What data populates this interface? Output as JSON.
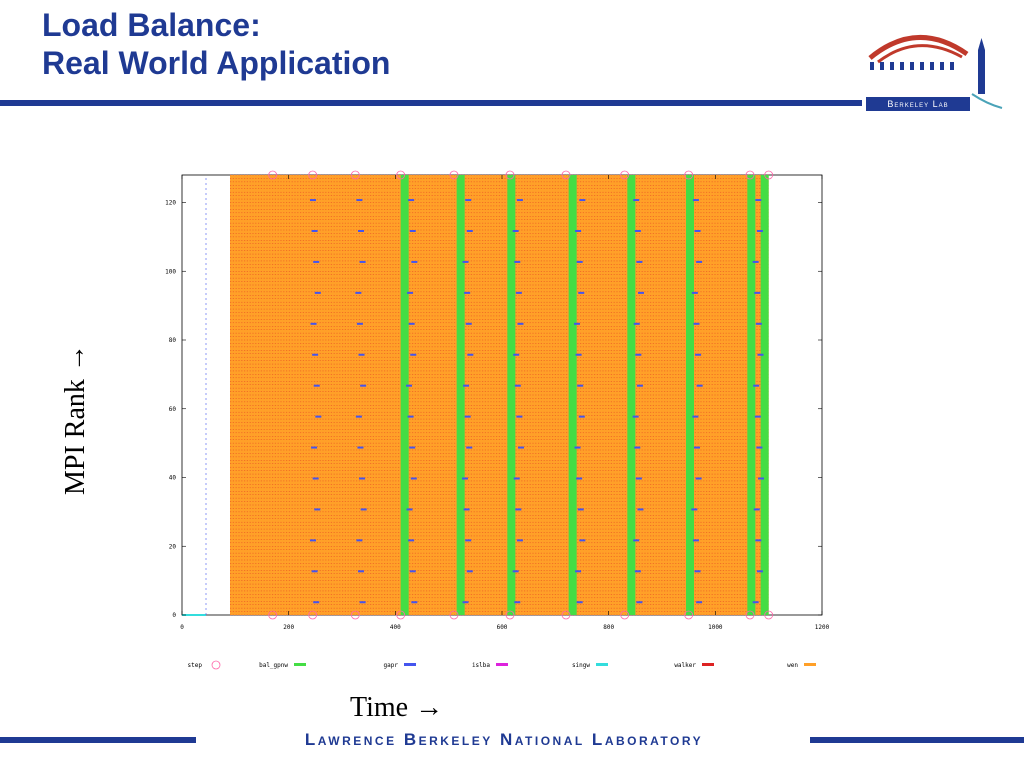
{
  "slide": {
    "title_line1": "Load Balance:",
    "title_line2": "Real World Application",
    "footer": "Lawrence Berkeley National Laboratory",
    "logo_text": "Berkeley Lab"
  },
  "colors": {
    "brand": "#1f3a93",
    "step": "#ff66aa",
    "bal_gpnw": "#44dd44",
    "gapr": "#4455ee",
    "islba": "#dd22dd",
    "singw": "#33dddd",
    "walker": "#dd2222",
    "wen": "#ffa028"
  },
  "chart_data": {
    "type": "scatter",
    "title": "",
    "xlabel": "Time →",
    "ylabel": "MPI Rank →",
    "xlim": [
      0,
      1200
    ],
    "ylim": [
      0,
      128
    ],
    "xticks": [
      0,
      200,
      400,
      600,
      800,
      1000,
      1200
    ],
    "yticks": [
      0,
      20,
      40,
      60,
      80,
      100,
      120
    ],
    "grid": false,
    "legend_position": "bottom",
    "series": [
      {
        "name": "step",
        "marker": "circle",
        "x": [
          170,
          245,
          325,
          410,
          510,
          615,
          720,
          830,
          950,
          1065,
          1100
        ],
        "y": [
          0,
          0,
          0,
          0,
          0,
          0,
          0,
          0,
          0,
          0,
          0
        ]
      },
      {
        "name": "bal_gpnw",
        "segments": [
          [
            410,
            425
          ],
          [
            515,
            530
          ],
          [
            610,
            625
          ],
          [
            725,
            740
          ],
          [
            835,
            850
          ],
          [
            945,
            960
          ],
          [
            1060,
            1075
          ],
          [
            1085,
            1100
          ]
        ],
        "y_range": [
          0,
          128
        ]
      },
      {
        "name": "gapr",
        "x_near": [
          245,
          330,
          425,
          530,
          625,
          740,
          850,
          960,
          1075
        ],
        "y_range": [
          0,
          128
        ]
      },
      {
        "name": "islba",
        "x_near": [],
        "y_range": [
          0,
          128
        ]
      },
      {
        "name": "singw",
        "x_range": [
          0,
          45
        ],
        "y": [
          0
        ]
      },
      {
        "name": "walker",
        "x_range": [
          90,
          1100
        ],
        "y_range": [
          0,
          128
        ]
      },
      {
        "name": "wen",
        "x_range": [
          90,
          1100
        ],
        "y_range": [
          0,
          128
        ]
      }
    ]
  }
}
